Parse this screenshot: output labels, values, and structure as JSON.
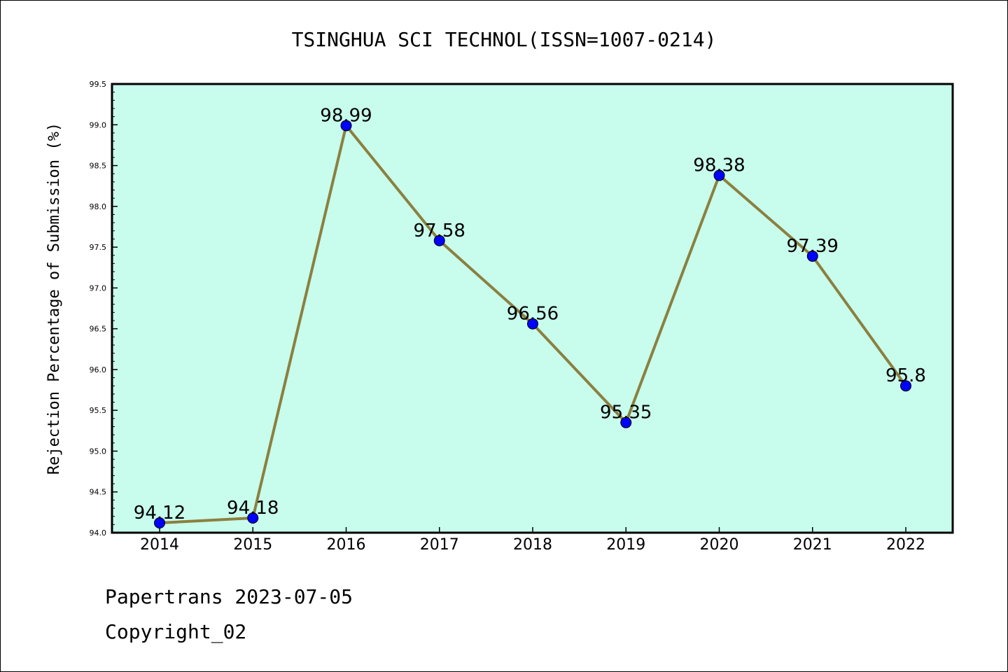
{
  "chart_data": {
    "type": "line",
    "title": "TSINGHUA SCI TECHNOL(ISSN=1007-0214)",
    "xlabel": "",
    "ylabel": "Rejection Percentage of Submission (%)",
    "categories": [
      "2014",
      "2015",
      "2016",
      "2017",
      "2018",
      "2019",
      "2020",
      "2021",
      "2022"
    ],
    "values": [
      94.12,
      94.18,
      98.99,
      97.58,
      96.56,
      95.35,
      98.38,
      97.39,
      95.8
    ],
    "data_labels": [
      "94.12",
      "94.18",
      "98.99",
      "97.58",
      "96.56",
      "95.35",
      "98.38",
      "97.39",
      "95.8"
    ],
    "ylim": [
      94.0,
      99.5
    ],
    "yticks": [
      "94.0",
      "94.5",
      "95.0",
      "95.5",
      "96.0",
      "96.5",
      "97.0",
      "97.5",
      "98.0",
      "98.5",
      "99.0",
      "99.5"
    ],
    "grid": false,
    "colors": {
      "plot_background": "#c8fcec",
      "line": "#8b8040",
      "marker": "#0000ff"
    }
  },
  "footer": {
    "line1": "Papertrans 2023-07-05",
    "line2": "Copyright_02"
  }
}
